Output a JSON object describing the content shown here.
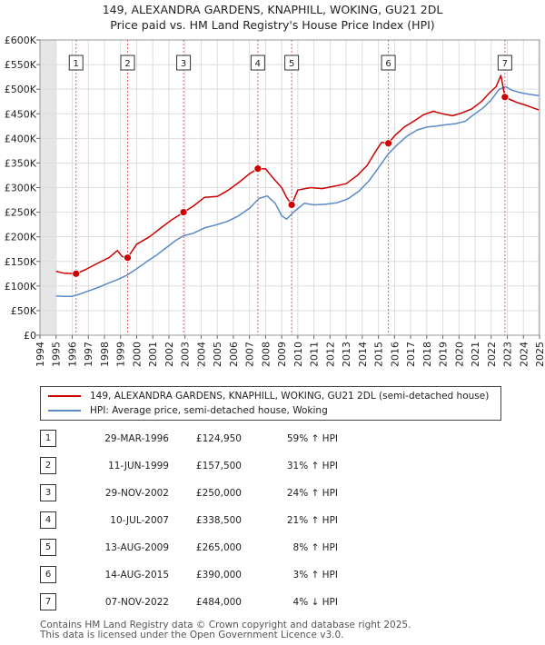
{
  "chart_data": {
    "type": "line",
    "title": "149, ALEXANDRA GARDENS, KNAPHILL, WOKING, GU21 2DL",
    "subtitle": "Price paid vs. HM Land Registry's House Price Index (HPI)",
    "xlim": [
      1994,
      2025
    ],
    "ylim": [
      0,
      600000
    ],
    "x_ticks": [
      1994,
      1995,
      1996,
      1997,
      1998,
      1999,
      2000,
      2001,
      2002,
      2003,
      2004,
      2005,
      2006,
      2007,
      2008,
      2009,
      2010,
      2011,
      2012,
      2013,
      2014,
      2015,
      2016,
      2017,
      2018,
      2019,
      2020,
      2021,
      2022,
      2023,
      2024,
      2025
    ],
    "y_ticks": [
      0,
      50000,
      100000,
      150000,
      200000,
      250000,
      300000,
      350000,
      400000,
      450000,
      500000,
      550000,
      600000
    ],
    "y_tick_labels": [
      "£0",
      "£50K",
      "£100K",
      "£150K",
      "£200K",
      "£250K",
      "£300K",
      "£350K",
      "£400K",
      "£450K",
      "£500K",
      "£550K",
      "£600K"
    ],
    "shaded_ranges": [
      [
        1994,
        1995.0
      ],
      [
        2024.9,
        2025
      ]
    ],
    "series": [
      {
        "name": "149, ALEXANDRA GARDENS, KNAPHILL, WOKING, GU21 2DL (semi-detached house)",
        "color": "#cc0000",
        "points": [
          [
            1995.0,
            130000
          ],
          [
            1995.5,
            126000
          ],
          [
            1996.24,
            124950
          ],
          [
            1996.8,
            133000
          ],
          [
            1997.5,
            145000
          ],
          [
            1998.3,
            158000
          ],
          [
            1998.8,
            172000
          ],
          [
            1999.1,
            160000
          ],
          [
            1999.44,
            157500
          ],
          [
            2000.0,
            185000
          ],
          [
            2000.8,
            200000
          ],
          [
            2001.5,
            218000
          ],
          [
            2002.2,
            235000
          ],
          [
            2002.91,
            250000
          ],
          [
            2003.5,
            262000
          ],
          [
            2004.2,
            280000
          ],
          [
            2005.0,
            282000
          ],
          [
            2005.7,
            295000
          ],
          [
            2006.4,
            312000
          ],
          [
            2007.0,
            328000
          ],
          [
            2007.52,
            338500
          ],
          [
            2008.0,
            338000
          ],
          [
            2008.5,
            318000
          ],
          [
            2009.0,
            300000
          ],
          [
            2009.3,
            280000
          ],
          [
            2009.62,
            265000
          ],
          [
            2010.0,
            295000
          ],
          [
            2010.8,
            300000
          ],
          [
            2011.5,
            298000
          ],
          [
            2012.3,
            303000
          ],
          [
            2013.0,
            308000
          ],
          [
            2013.7,
            325000
          ],
          [
            2014.3,
            345000
          ],
          [
            2014.8,
            372000
          ],
          [
            2015.2,
            392000
          ],
          [
            2015.62,
            390000
          ],
          [
            2016.0,
            405000
          ],
          [
            2016.6,
            423000
          ],
          [
            2017.2,
            435000
          ],
          [
            2017.8,
            448000
          ],
          [
            2018.4,
            455000
          ],
          [
            2019.0,
            450000
          ],
          [
            2019.6,
            446000
          ],
          [
            2020.2,
            452000
          ],
          [
            2020.8,
            460000
          ],
          [
            2021.4,
            475000
          ],
          [
            2021.9,
            493000
          ],
          [
            2022.3,
            505000
          ],
          [
            2022.6,
            528000
          ],
          [
            2022.85,
            484000
          ],
          [
            2023.1,
            480000
          ],
          [
            2023.6,
            473000
          ],
          [
            2024.1,
            468000
          ],
          [
            2024.6,
            462000
          ],
          [
            2024.95,
            458000
          ]
        ]
      },
      {
        "name": "HPI: Average price, semi-detached house, Woking",
        "color": "#5b8ac6",
        "points": [
          [
            1995.0,
            80000
          ],
          [
            1995.5,
            79000
          ],
          [
            1996.0,
            79000
          ],
          [
            1996.5,
            84000
          ],
          [
            1997.0,
            90000
          ],
          [
            1997.6,
            97000
          ],
          [
            1998.2,
            105000
          ],
          [
            1998.8,
            113000
          ],
          [
            1999.4,
            122000
          ],
          [
            2000.0,
            135000
          ],
          [
            2000.6,
            149000
          ],
          [
            2001.2,
            162000
          ],
          [
            2001.8,
            177000
          ],
          [
            2002.4,
            192000
          ],
          [
            2002.9,
            202000
          ],
          [
            2003.5,
            207000
          ],
          [
            2004.2,
            218000
          ],
          [
            2004.9,
            224000
          ],
          [
            2005.6,
            231000
          ],
          [
            2006.3,
            242000
          ],
          [
            2007.0,
            258000
          ],
          [
            2007.6,
            278000
          ],
          [
            2008.1,
            283000
          ],
          [
            2008.6,
            268000
          ],
          [
            2009.0,
            243000
          ],
          [
            2009.3,
            236000
          ],
          [
            2009.8,
            252000
          ],
          [
            2010.4,
            268000
          ],
          [
            2011.0,
            265000
          ],
          [
            2011.7,
            266000
          ],
          [
            2012.4,
            269000
          ],
          [
            2013.1,
            277000
          ],
          [
            2013.8,
            293000
          ],
          [
            2014.4,
            313000
          ],
          [
            2015.0,
            340000
          ],
          [
            2015.6,
            368000
          ],
          [
            2016.2,
            388000
          ],
          [
            2016.8,
            405000
          ],
          [
            2017.4,
            417000
          ],
          [
            2018.0,
            423000
          ],
          [
            2018.6,
            425000
          ],
          [
            2019.2,
            428000
          ],
          [
            2019.8,
            430000
          ],
          [
            2020.4,
            435000
          ],
          [
            2020.9,
            448000
          ],
          [
            2021.5,
            462000
          ],
          [
            2022.0,
            478000
          ],
          [
            2022.5,
            500000
          ],
          [
            2022.9,
            505000
          ],
          [
            2023.3,
            498000
          ],
          [
            2023.8,
            493000
          ],
          [
            2024.3,
            490000
          ],
          [
            2024.95,
            487000
          ]
        ]
      }
    ],
    "sales": [
      {
        "label": "1",
        "x": 1996.24,
        "price": 124950
      },
      {
        "label": "2",
        "x": 1999.44,
        "price": 157500
      },
      {
        "label": "3",
        "x": 2002.91,
        "price": 250000
      },
      {
        "label": "4",
        "x": 2007.52,
        "price": 338500
      },
      {
        "label": "5",
        "x": 2009.62,
        "price": 265000
      },
      {
        "label": "6",
        "x": 2015.62,
        "price": 390000
      },
      {
        "label": "7",
        "x": 2022.85,
        "price": 484000
      }
    ]
  },
  "legend": {
    "red_label": "149, ALEXANDRA GARDENS, KNAPHILL, WOKING, GU21 2DL (semi-detached house)",
    "blue_label": "HPI: Average price, semi-detached house, Woking"
  },
  "table": [
    {
      "num": "1",
      "date": "29-MAR-1996",
      "price": "£124,950",
      "hpi": "59% ↑ HPI"
    },
    {
      "num": "2",
      "date": "11-JUN-1999",
      "price": "£157,500",
      "hpi": "31% ↑ HPI"
    },
    {
      "num": "3",
      "date": "29-NOV-2002",
      "price": "£250,000",
      "hpi": "24% ↑ HPI"
    },
    {
      "num": "4",
      "date": "10-JUL-2007",
      "price": "£338,500",
      "hpi": "21% ↑ HPI"
    },
    {
      "num": "5",
      "date": "13-AUG-2009",
      "price": "£265,000",
      "hpi": "8% ↑ HPI"
    },
    {
      "num": "6",
      "date": "14-AUG-2015",
      "price": "£390,000",
      "hpi": "3% ↑ HPI"
    },
    {
      "num": "7",
      "date": "07-NOV-2022",
      "price": "£484,000",
      "hpi": "4% ↓ HPI"
    }
  ],
  "footer": {
    "line1": "Contains HM Land Registry data © Crown copyright and database right 2025.",
    "line2": "This data is licensed under the Open Government Licence v3.0."
  }
}
